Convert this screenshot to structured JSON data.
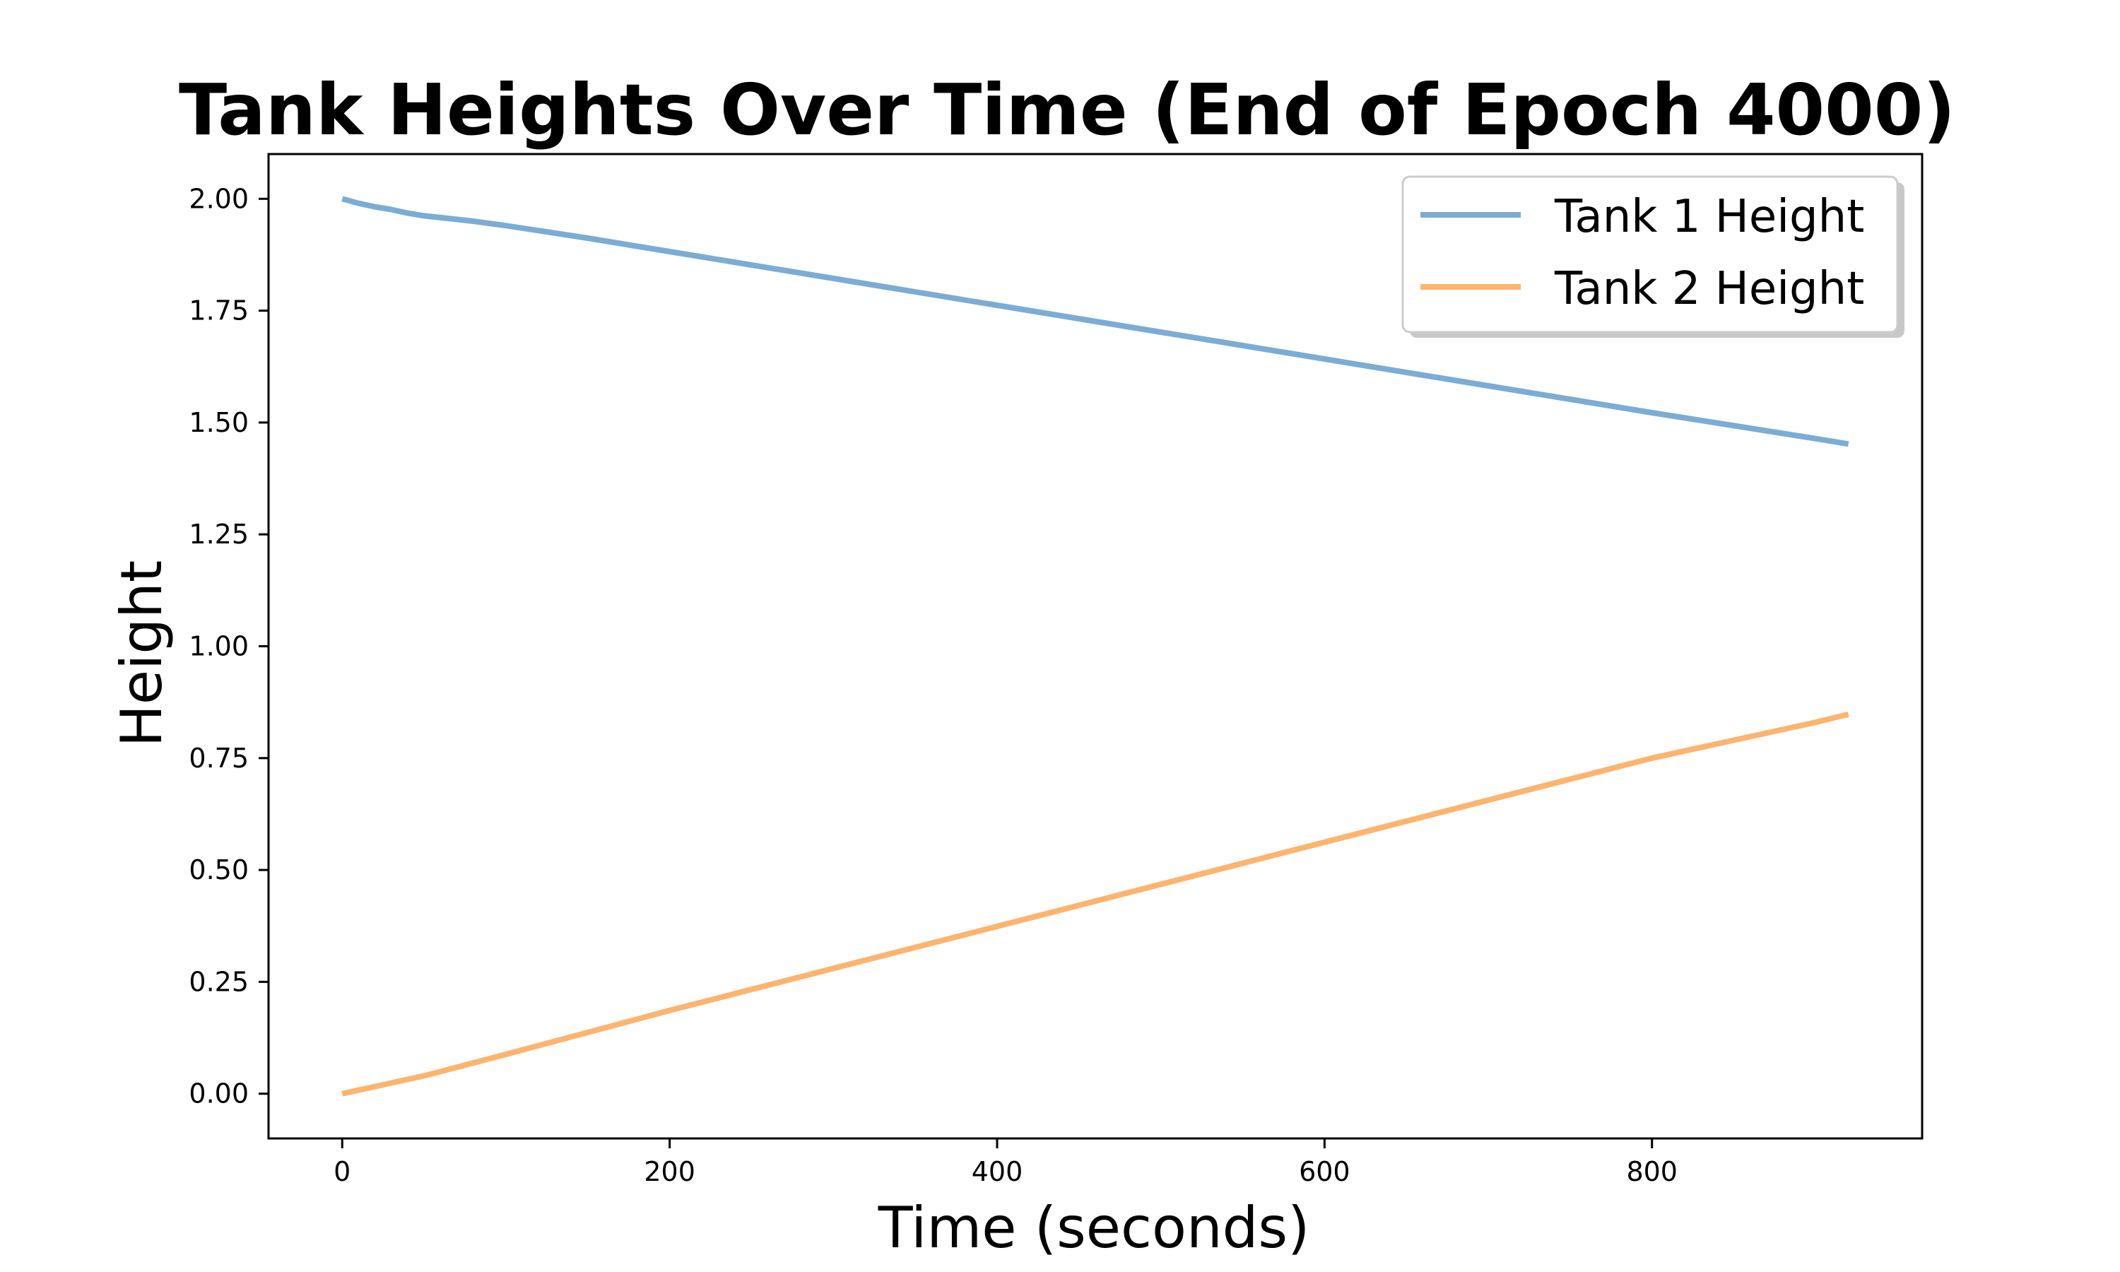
{
  "chart_data": {
    "type": "line",
    "title": "Tank Heights Over Time (End of Epoch 4000)",
    "xlabel": "Time (seconds)",
    "ylabel": "Height",
    "xlim": [
      -45,
      965
    ],
    "ylim": [
      -0.1,
      2.1
    ],
    "xticks": [
      0,
      200,
      400,
      600,
      800
    ],
    "xtick_labels": [
      "0",
      "200",
      "400",
      "600",
      "800"
    ],
    "yticks": [
      0.0,
      0.25,
      0.5,
      0.75,
      1.0,
      1.25,
      1.5,
      1.75,
      2.0
    ],
    "ytick_labels": [
      "0.00",
      "0.25",
      "0.50",
      "0.75",
      "1.00",
      "1.25",
      "1.50",
      "1.75",
      "2.00"
    ],
    "grid": false,
    "legend_position": "top-right",
    "series": [
      {
        "name": "Tank 1 Height",
        "color": "#7BADD4",
        "x": [
          0,
          10,
          20,
          30,
          40,
          50,
          60,
          80,
          100,
          150,
          200,
          300,
          400,
          500,
          600,
          700,
          800,
          900,
          920
        ],
        "y": [
          2.0,
          1.99,
          1.982,
          1.976,
          1.968,
          1.962,
          1.958,
          1.95,
          1.94,
          1.912,
          1.882,
          1.822,
          1.762,
          1.702,
          1.642,
          1.582,
          1.522,
          1.464,
          1.452
        ]
      },
      {
        "name": "Tank 2 Height",
        "color": "#FDB46F",
        "x": [
          0,
          10,
          20,
          30,
          50,
          100,
          200,
          300,
          400,
          500,
          600,
          700,
          800,
          900,
          920
        ],
        "y": [
          0.0,
          0.008,
          0.016,
          0.024,
          0.04,
          0.088,
          0.186,
          0.28,
          0.374,
          0.468,
          0.562,
          0.656,
          0.75,
          0.83,
          0.848
        ]
      }
    ]
  }
}
